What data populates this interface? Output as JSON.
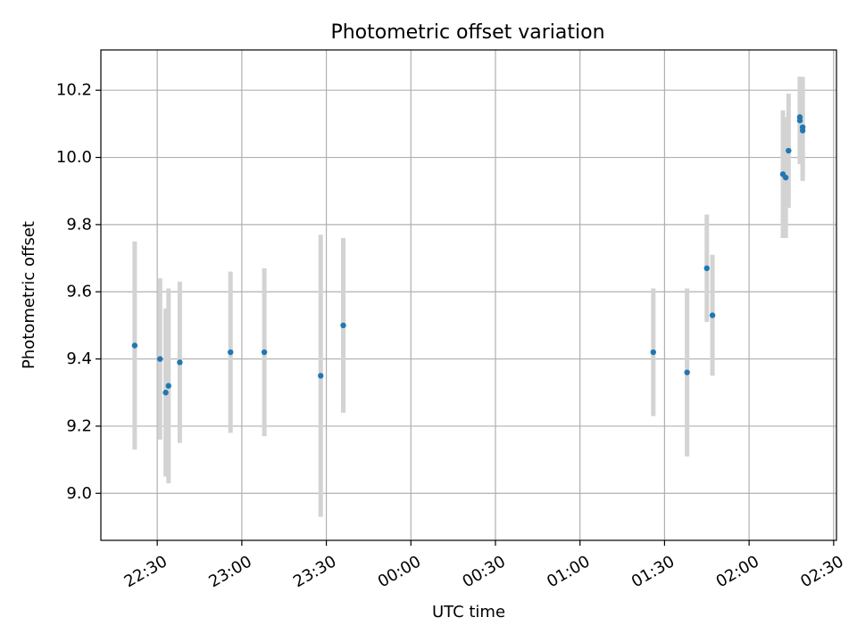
{
  "chart_data": {
    "type": "scatter",
    "title": "Photometric offset variation",
    "xlabel": "UTC time",
    "ylabel": "Photometric offset",
    "x_ticks": [
      "22:30",
      "23:00",
      "23:30",
      "00:00",
      "00:30",
      "01:00",
      "01:30",
      "02:00",
      "02:30"
    ],
    "y_ticks": [
      "9.0",
      "9.2",
      "9.4",
      "9.6",
      "9.8",
      "10.0",
      "10.2"
    ],
    "xlim": [
      "22:10",
      "02:31"
    ],
    "ylim": [
      8.86,
      10.32
    ],
    "grid": true,
    "legend": "none",
    "colors": {
      "marker": "#1f77b4",
      "errorbar": "#d3d3d3",
      "grid": "#b0b0b0",
      "frame": "#000000"
    },
    "series": [
      {
        "points": [
          {
            "x": "22:22",
            "y": 9.44,
            "yerr": 0.31
          },
          {
            "x": "22:31",
            "y": 9.4,
            "yerr": 0.24
          },
          {
            "x": "22:33",
            "y": 9.3,
            "yerr": 0.25
          },
          {
            "x": "22:34",
            "y": 9.32,
            "yerr": 0.29
          },
          {
            "x": "22:38",
            "y": 9.39,
            "yerr": 0.24
          },
          {
            "x": "22:56",
            "y": 9.42,
            "yerr": 0.24
          },
          {
            "x": "23:08",
            "y": 9.42,
            "yerr": 0.25
          },
          {
            "x": "23:28",
            "y": 9.35,
            "yerr": 0.42
          },
          {
            "x": "23:36",
            "y": 9.5,
            "yerr": 0.26
          },
          {
            "x": "01:26",
            "y": 9.42,
            "yerr": 0.19
          },
          {
            "x": "01:38",
            "y": 9.36,
            "yerr": 0.25
          },
          {
            "x": "01:45",
            "y": 9.67,
            "yerr": 0.16
          },
          {
            "x": "01:47",
            "y": 9.53,
            "yerr": 0.18
          },
          {
            "x": "02:12",
            "y": 9.95,
            "yerr": 0.19
          },
          {
            "x": "02:13",
            "y": 9.94,
            "yerr": 0.18
          },
          {
            "x": "02:14",
            "y": 10.02,
            "yerr": 0.17
          },
          {
            "x": "02:18",
            "y": 10.12,
            "yerr": 0.12
          },
          {
            "x": "02:18",
            "y": 10.11,
            "yerr": 0.13
          },
          {
            "x": "02:19",
            "y": 10.08,
            "yerr": 0.15
          },
          {
            "x": "02:19",
            "y": 10.09,
            "yerr": 0.15
          }
        ]
      }
    ]
  }
}
